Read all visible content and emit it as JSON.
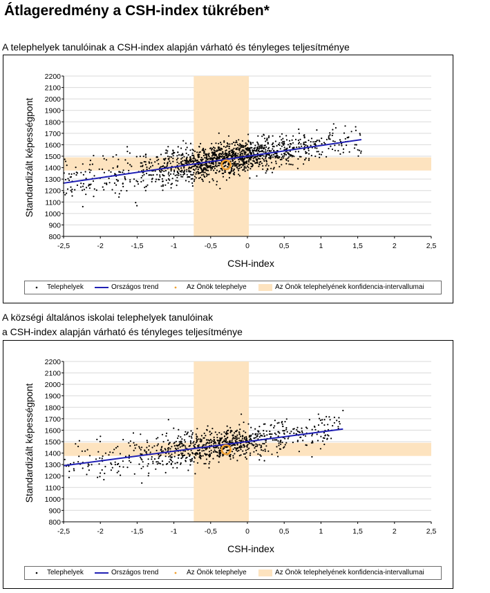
{
  "page": {
    "title": "Átlageredmény a CSH-index tükrében*"
  },
  "chart_data": [
    {
      "type": "scatter",
      "title": "A telephelyek tanulóinak a CSH-index alapján várható és tényleges teljesítménye",
      "title_lines": [
        "A telephelyek tanulóinak a CSH-index alapján várható és tényleges teljesítménye"
      ],
      "xlabel": "CSH-index",
      "ylabel": "Standardizált képességpont",
      "xlim": [
        -2.5,
        2.5
      ],
      "ylim": [
        800,
        2200
      ],
      "x_ticks": [
        -2.5,
        -2,
        -1.5,
        -1,
        -0.5,
        0,
        0.5,
        1,
        1.5,
        2,
        2.5
      ],
      "x_tick_labels": [
        "-2,5",
        "-2",
        "-1,5",
        "-1",
        "-0,5",
        "0",
        "0,5",
        "1",
        "1,5",
        "2",
        "2,5"
      ],
      "y_ticks": [
        800,
        900,
        1000,
        1100,
        1200,
        1300,
        1400,
        1500,
        1600,
        1700,
        1800,
        1900,
        2000,
        2100,
        2200
      ],
      "y_tick_labels": [
        "800",
        "900",
        "1000",
        "1100",
        "1200",
        "1300",
        "1400",
        "1500",
        "1600",
        "1700",
        "1800",
        "1900",
        "2000",
        "2100",
        "2200"
      ],
      "grid": true,
      "trend": {
        "name": "Országos trend",
        "x": [
          -2.5,
          1.55
        ],
        "y": [
          1265,
          1645
        ],
        "color": "#1f1fb4"
      },
      "own_site": {
        "name": "Az Önök telephelye",
        "x": -0.29,
        "y": 1425,
        "color": "#f0a030"
      },
      "confidence": {
        "name": "Az Önök telephelyének konfidencia-intervallumai",
        "x_range": [
          -0.73,
          0.02
        ],
        "y_range": [
          1375,
          1490
        ],
        "color": "#fde3bf"
      },
      "scatter": {
        "name": "Telephelyek",
        "count": 1500,
        "x_range": [
          -2.5,
          1.55
        ],
        "seed": 17,
        "color": "#000000"
      },
      "legend": [
        "Telephelyek",
        "Országos trend",
        "Az Önök telephelye",
        "Az Önök telephelyének konfidencia-intervallumai"
      ]
    },
    {
      "type": "scatter",
      "title": "A községi általános iskolai telephelyek tanulóinak a CSH-index alapján várható és tényleges teljesítménye",
      "title_lines": [
        "A községi általános iskolai telephelyek tanulóinak",
        "a CSH-index alapján várható és tényleges teljesítménye"
      ],
      "xlabel": "CSH-index",
      "ylabel": "Standardizált képességpont",
      "xlim": [
        -2.5,
        2.5
      ],
      "ylim": [
        800,
        2200
      ],
      "x_ticks": [
        -2.5,
        -2,
        -1.5,
        -1,
        -0.5,
        0,
        0.5,
        1,
        1.5,
        2,
        2.5
      ],
      "x_tick_labels": [
        "-2,5",
        "-2",
        "-1,5",
        "-1",
        "-0,5",
        "0",
        "0,5",
        "1",
        "1,5",
        "2",
        "2,5"
      ],
      "y_ticks": [
        800,
        900,
        1000,
        1100,
        1200,
        1300,
        1400,
        1500,
        1600,
        1700,
        1800,
        1900,
        2000,
        2100,
        2200
      ],
      "y_tick_labels": [
        "800",
        "900",
        "1000",
        "1100",
        "1200",
        "1300",
        "1400",
        "1500",
        "1600",
        "1700",
        "1800",
        "1900",
        "2000",
        "2100",
        "2200"
      ],
      "grid": true,
      "trend": {
        "name": "Országos trend",
        "x": [
          -2.5,
          1.3
        ],
        "y": [
          1290,
          1610
        ],
        "color": "#1f1fb4"
      },
      "own_site": {
        "name": "Az Önök telephelye",
        "x": -0.29,
        "y": 1430,
        "color": "#f0a030"
      },
      "confidence": {
        "name": "Az Önök telephelyének konfidencia-intervallumai",
        "x_range": [
          -0.73,
          0.02
        ],
        "y_range": [
          1375,
          1490
        ],
        "color": "#fde3bf"
      },
      "scatter": {
        "name": "Telephelyek",
        "count": 900,
        "x_range": [
          -2.5,
          1.3
        ],
        "seed": 29,
        "color": "#000000"
      },
      "legend": [
        "Telephelyek",
        "Országos trend",
        "Az Önök telephelye",
        "Az Önök telephelyének konfidencia-intervallumai"
      ]
    }
  ]
}
